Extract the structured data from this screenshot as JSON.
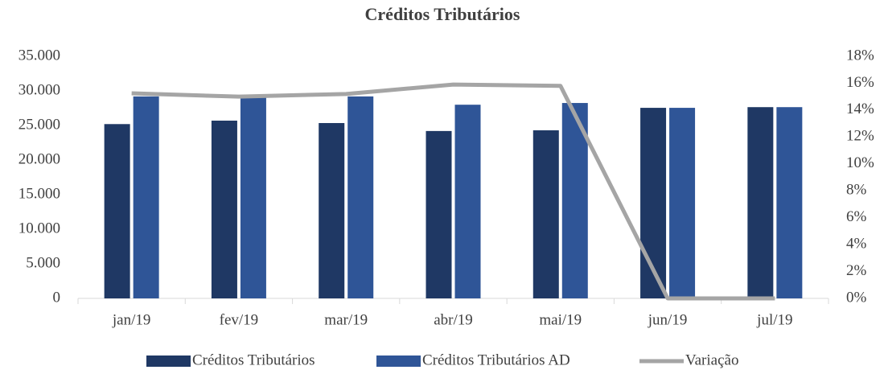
{
  "chart_data": {
    "type": "bar",
    "title": "Créditos Tributários",
    "categories": [
      "jan/19",
      "fev/19",
      "mar/19",
      "abr/19",
      "mai/19",
      "jun/19",
      "jul/19"
    ],
    "series": [
      {
        "name": "Créditos Tributários",
        "color": "#1f3864",
        "values": [
          25200,
          25700,
          25350,
          24200,
          24300,
          27550,
          27650
        ]
      },
      {
        "name": "Créditos Tributários AD",
        "color": "#2f5597",
        "values": [
          29200,
          29300,
          29200,
          28000,
          28250,
          27550,
          27650
        ]
      },
      {
        "name": "Variação",
        "type": "line",
        "axis": "y2",
        "color": "#a5a5a5",
        "values": [
          15.25,
          15.0,
          15.2,
          15.9,
          15.8,
          0,
          0
        ]
      }
    ],
    "ylim": [
      0,
      35000
    ],
    "yticks": [
      0,
      {
        "value": 5000,
        "label": "5.000"
      },
      {
        "value": 10000,
        "label": "10.000"
      },
      {
        "value": 15000,
        "label": "15.000"
      },
      {
        "value": 20000,
        "label": "20.000"
      },
      {
        "value": 25000,
        "label": "25.000"
      },
      {
        "value": 30000,
        "label": "30.000"
      },
      {
        "value": 35000,
        "label": "35.000"
      }
    ],
    "y2lim": [
      0,
      18
    ],
    "y2ticks": [
      {
        "value": 0,
        "label": "0%"
      },
      {
        "value": 2,
        "label": "2%"
      },
      {
        "value": 4,
        "label": "4%"
      },
      {
        "value": 6,
        "label": "6%"
      },
      {
        "value": 8,
        "label": "8%"
      },
      {
        "value": 10,
        "label": "10%"
      },
      {
        "value": 12,
        "label": "12%"
      },
      {
        "value": 14,
        "label": "14%"
      },
      {
        "value": 16,
        "label": "16%"
      },
      {
        "value": 18,
        "label": "18%"
      }
    ],
    "grid": false,
    "legend": "bottom"
  }
}
